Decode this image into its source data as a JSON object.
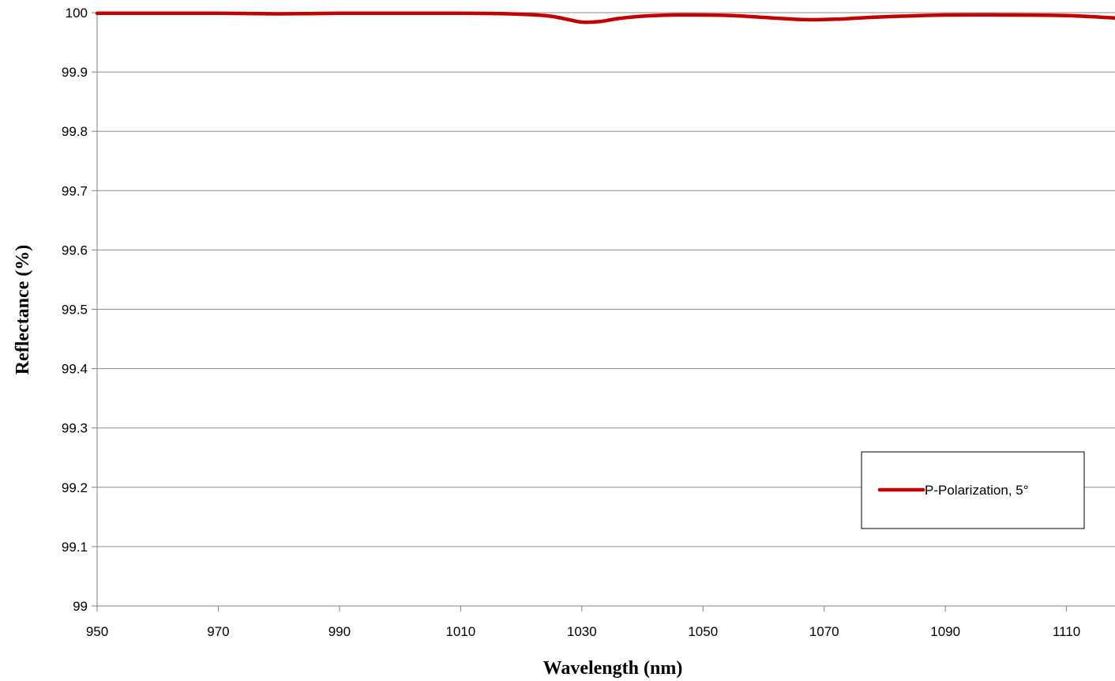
{
  "chart_data": {
    "type": "line",
    "title": "",
    "xlabel": "Wavelength (nm)",
    "ylabel": "Reflectance (%)",
    "xlim": [
      950,
      1118
    ],
    "ylim": [
      99,
      100
    ],
    "x_ticks": [
      "950",
      "970",
      "990",
      "1010",
      "1030",
      "1050",
      "1070",
      "1090",
      "1110"
    ],
    "y_ticks": [
      "99",
      "99.1",
      "99.2",
      "99.3",
      "99.4",
      "99.5",
      "99.6",
      "99.7",
      "99.8",
      "99.9",
      "100"
    ],
    "grid": "horizontal",
    "legend_position": "bottom-right",
    "series": [
      {
        "name": "P-Polarization, 5°",
        "color": "#c00000",
        "x": [
          950,
          960,
          970,
          980,
          990,
          1000,
          1010,
          1018,
          1024,
          1027,
          1030,
          1033,
          1036,
          1040,
          1045,
          1050,
          1055,
          1060,
          1065,
          1068,
          1072,
          1080,
          1090,
          1100,
          1110,
          1118
        ],
        "y": [
          99.999,
          99.999,
          99.999,
          99.998,
          99.999,
          99.999,
          99.999,
          99.998,
          99.995,
          99.99,
          99.984,
          99.985,
          99.99,
          99.994,
          99.996,
          99.996,
          99.995,
          99.992,
          99.989,
          99.988,
          99.989,
          99.993,
          99.996,
          99.996,
          99.995,
          99.991
        ]
      }
    ]
  }
}
